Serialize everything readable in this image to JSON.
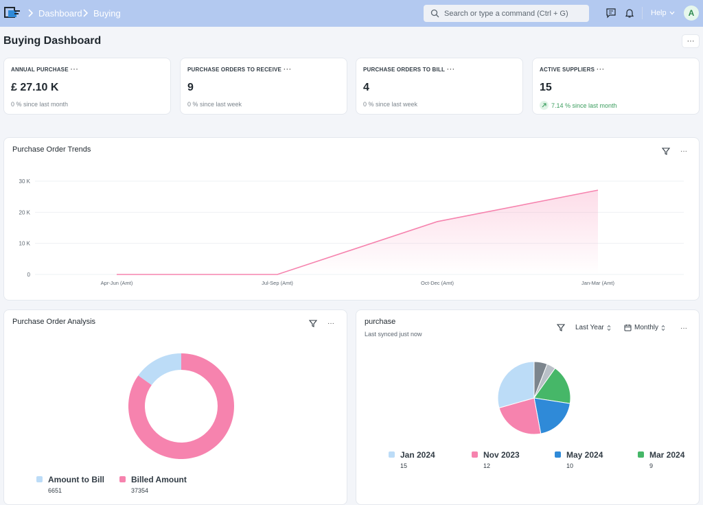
{
  "breadcrumb": {
    "items": [
      "Dashboard",
      "Buying"
    ]
  },
  "search": {
    "placeholder": "Search or type a command (Ctrl + G)"
  },
  "nav": {
    "help_label": "Help",
    "avatar_initial": "A"
  },
  "page": {
    "title": "Buying Dashboard",
    "menu_label": "···"
  },
  "kpis": [
    {
      "title": "ANNUAL PURCHASE",
      "value": "£ 27.10 K",
      "sub": "0 % since last month",
      "trend": "flat"
    },
    {
      "title": "PURCHASE ORDERS TO RECEIVE",
      "value": "9",
      "sub": "0 % since last week",
      "trend": "flat"
    },
    {
      "title": "PURCHASE ORDERS TO BILL",
      "value": "4",
      "sub": "0 % since last week",
      "trend": "flat"
    },
    {
      "title": "ACTIVE SUPPLIERS",
      "value": "15",
      "sub": "7.14 % since last month",
      "trend": "up"
    }
  ],
  "kpi_menu_label": "···",
  "card_menu_label": "···",
  "trends_card": {
    "title": "Purchase Order Trends"
  },
  "analysis_card": {
    "title": "Purchase Order Analysis"
  },
  "purchase_card": {
    "title": "purchase",
    "subtitle": "Last synced just now",
    "period_label": "Last Year",
    "interval_label": "Monthly"
  },
  "colors": {
    "accent_pink": "#f683ae",
    "light_blue": "#bcdcf7",
    "blue": "#2f8ad8",
    "green": "#46b768",
    "gray": "#7c858d",
    "light_gray": "#b9c0c7",
    "up_green": "#3b9d5e"
  },
  "chart_data": [
    {
      "type": "area",
      "title": "Purchase Order Trends",
      "categories": [
        "Apr-Jun (Amt)",
        "Jul-Sep (Amt)",
        "Oct-Dec (Amt)",
        "Jan-Mar (Amt)"
      ],
      "series": [
        {
          "values": [
            0,
            0,
            17000,
            27100
          ]
        }
      ],
      "yticks": [
        "0",
        "10 K",
        "20 K",
        "30 K"
      ],
      "ytick_values": [
        0,
        10000,
        20000,
        30000
      ],
      "ylim": [
        0,
        30000
      ],
      "grid": true,
      "legend": "none"
    },
    {
      "type": "pie",
      "title": "Purchase Order Analysis",
      "style": "donut",
      "slices": [
        {
          "name": "Amount to Bill",
          "value": 6651,
          "color": "#bcdcf7"
        },
        {
          "name": "Billed Amount",
          "value": 37354,
          "color": "#f683ae"
        }
      ],
      "legend": "bottom"
    },
    {
      "type": "pie",
      "title": "purchase",
      "slices": [
        {
          "name": "Jan 2024",
          "value": 15,
          "color": "#bcdcf7",
          "legend": true
        },
        {
          "name": "Nov 2023",
          "value": 12,
          "color": "#f683ae",
          "legend": true
        },
        {
          "name": "May 2024",
          "value": 10,
          "color": "#2f8ad8",
          "legend": true
        },
        {
          "name": "Mar 2024",
          "value": 9,
          "color": "#46b768",
          "legend": true
        },
        {
          "name": "",
          "value": 2,
          "color": "#b9c0c7",
          "legend": false
        },
        {
          "name": "",
          "value": 3,
          "color": "#7c858d",
          "legend": false
        }
      ],
      "legend": "bottom"
    }
  ]
}
